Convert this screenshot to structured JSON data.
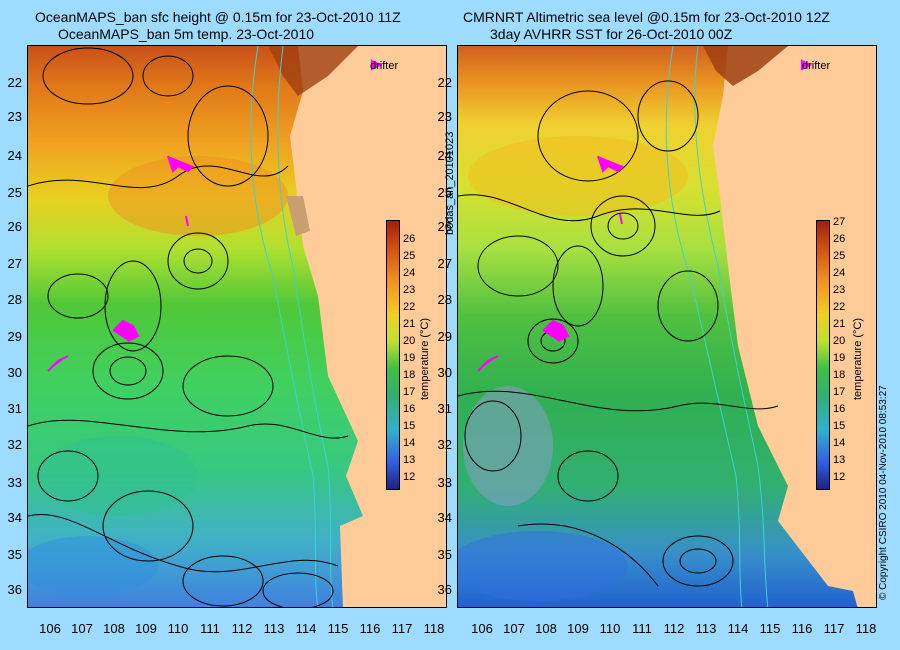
{
  "left_panel": {
    "title_line1": "OceanMAPS_ban sfc height @ 0.15m for 23-Oct-2010 11Z",
    "title_line2": "OceanMAPS_ban 5m temp. 23-Oct-2010",
    "drifter_label": "drifter"
  },
  "right_panel": {
    "title_line1": "CMRNRT Altimetric sea level  @0.15m  for 23-Oct-2010 12Z",
    "title_line2": "3day AVHRR SST for 26-Oct-2010 00Z",
    "drifter_label": "drifter"
  },
  "axes": {
    "lat_labels": [
      "22",
      "23",
      "24",
      "25",
      "26",
      "27",
      "28",
      "29",
      "30",
      "31",
      "32",
      "33",
      "34",
      "35",
      "36"
    ],
    "lon_labels": [
      "106",
      "107",
      "108",
      "109",
      "110",
      "111",
      "112",
      "113",
      "114",
      "115",
      "116",
      "117",
      "118"
    ]
  },
  "left_colorbar": {
    "ticks": [
      "26",
      "25",
      "24",
      "23",
      "22",
      "21",
      "20",
      "19",
      "18",
      "17",
      "16",
      "15",
      "14",
      "13",
      "12"
    ],
    "title": "temperature (°C)"
  },
  "right_colorbar": {
    "ticks": [
      "27",
      "26",
      "25",
      "24",
      "23",
      "22",
      "21",
      "20",
      "19",
      "18",
      "17",
      "16",
      "15",
      "14",
      "13",
      "12"
    ],
    "title": "temperature (°C)"
  },
  "side_text": {
    "run_id": "bodas_an_20101023",
    "copyright": "© Copyright CSIRO 2010   04-Nov-2010 08:53:27"
  },
  "colors": {
    "background": "#9ddcff",
    "land": "#ffcc99",
    "contour_line": "#000000",
    "bathymetry_line": "#40d0d0",
    "drifter": "#ff00ff"
  }
}
